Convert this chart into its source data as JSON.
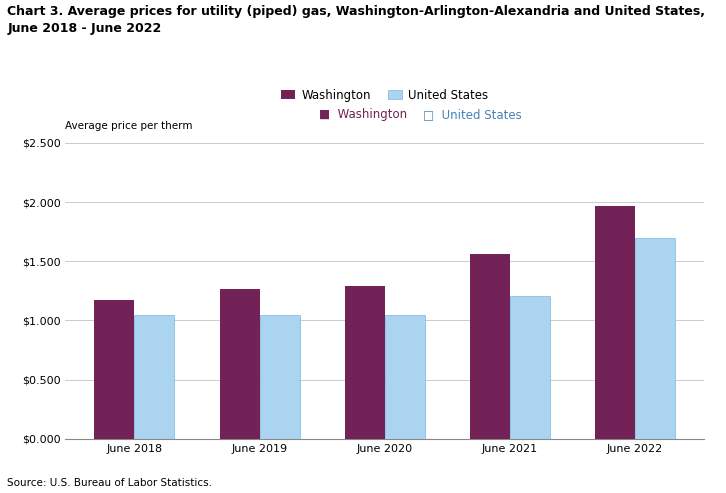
{
  "title_line1": "Chart 3. Average prices for utility (piped) gas, Washington-Arlington-Alexandria and United States,",
  "title_line2": "June 2018 - June 2022",
  "ylabel": "Average price per therm",
  "source": "Source: U.S. Bureau of Labor Statistics.",
  "categories": [
    "June 2018",
    "June 2019",
    "June 2020",
    "June 2021",
    "June 2022"
  ],
  "washington_values": [
    1.175,
    1.265,
    1.295,
    1.56,
    1.971
  ],
  "us_values": [
    1.05,
    1.047,
    1.047,
    1.21,
    1.695
  ],
  "washington_color": "#722257",
  "us_color": "#aad4f0",
  "us_edge_color": "#7ab8e0",
  "legend_labels": [
    "Washington",
    "United States"
  ],
  "ylim": [
    0,
    2.5
  ],
  "yticks": [
    0.0,
    0.5,
    1.0,
    1.5,
    2.0,
    2.5
  ],
  "bar_width": 0.32,
  "background_color": "#ffffff",
  "grid_color": "#cccccc",
  "title_fontsize": 9,
  "axis_label_fontsize": 7.5,
  "tick_fontsize": 8,
  "legend_fontsize": 8.5,
  "source_fontsize": 7.5
}
